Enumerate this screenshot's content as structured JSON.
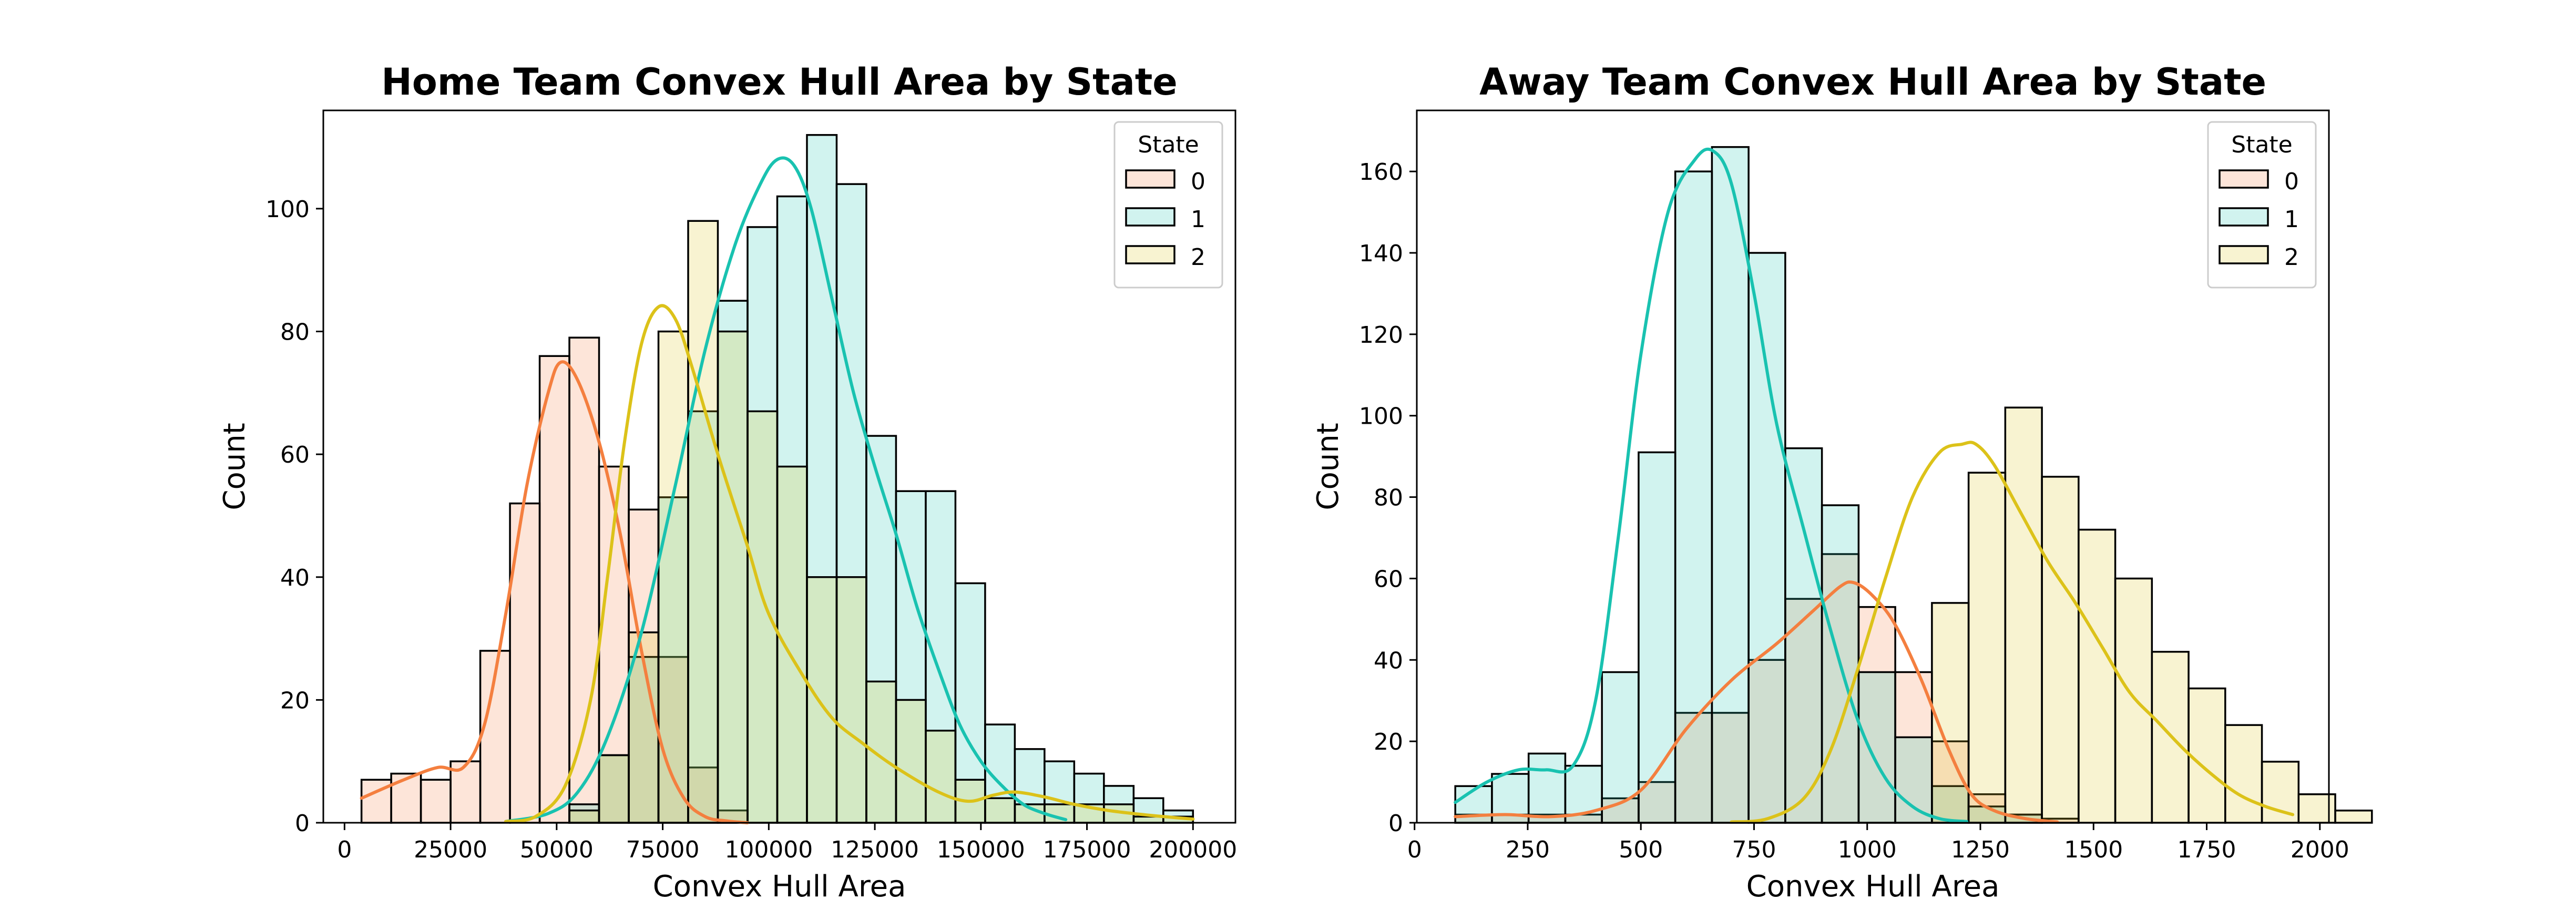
{
  "chart_data": [
    {
      "type": "histogram",
      "title": "Home Team Convex Hull Area by State",
      "xlabel": "Convex Hull Area",
      "ylabel": "Count",
      "xlim": [
        -5000,
        210000
      ],
      "ylim": [
        0,
        116
      ],
      "xticks": [
        0,
        25000,
        50000,
        75000,
        100000,
        125000,
        150000,
        175000,
        200000
      ],
      "xtick_labels": [
        "0",
        "25000",
        "50000",
        "75000",
        "100000",
        "125000",
        "150000",
        "175000",
        "200000"
      ],
      "yticks": [
        0,
        20,
        40,
        60,
        80,
        100
      ],
      "ytick_labels": [
        "0",
        "20",
        "40",
        "60",
        "80",
        "100"
      ],
      "legend": {
        "title": "State",
        "position": "top-right",
        "entries": [
          "0",
          "1",
          "2"
        ]
      },
      "bin_start": 4000,
      "bin_width": 7000,
      "series": [
        {
          "name": "0",
          "color": "#f47f3f",
          "counts": [
            7,
            8,
            7,
            10,
            28,
            52,
            76,
            79,
            58,
            51,
            27,
            9,
            2,
            0,
            0,
            0,
            0,
            0,
            0,
            0,
            0,
            0,
            0,
            0,
            0,
            0,
            0,
            0
          ],
          "kde_x": [
            4000,
            14000,
            22000,
            28000,
            33000,
            38000,
            43000,
            48000,
            51000,
            55000,
            60000,
            65000,
            70000,
            75000,
            80000,
            85000,
            90000,
            95000
          ],
          "kde_y": [
            4,
            7,
            9,
            9,
            16,
            34,
            55,
            70,
            75,
            72,
            62,
            47,
            28,
            12,
            4,
            1,
            0.3,
            0
          ]
        },
        {
          "name": "1",
          "color": "#19c2b0",
          "counts": [
            0,
            0,
            0,
            0,
            0,
            0,
            0,
            3,
            11,
            27,
            53,
            67,
            85,
            97,
            102,
            112,
            104,
            63,
            54,
            54,
            39,
            16,
            12,
            10,
            8,
            6,
            4,
            2
          ],
          "kde_x": [
            38000,
            48000,
            55000,
            62000,
            70000,
            78000,
            85000,
            92000,
            98000,
            102000,
            106000,
            110000,
            115000,
            120000,
            125000,
            130000,
            135000,
            140000,
            145000,
            150000,
            155000,
            160000,
            165000,
            170000
          ],
          "kde_y": [
            0.2,
            1.5,
            5,
            14,
            31,
            55,
            77,
            94,
            104,
            108,
            107,
            100,
            85,
            70,
            58,
            47,
            35,
            25,
            16,
            10,
            6,
            3,
            1.5,
            0.5
          ]
        },
        {
          "name": "2",
          "color": "#dcc219",
          "counts": [
            0,
            0,
            0,
            0,
            0,
            0,
            0,
            2,
            11,
            31,
            80,
            98,
            80,
            67,
            58,
            40,
            40,
            23,
            20,
            15,
            7,
            4,
            3,
            3,
            3,
            3,
            1,
            1
          ],
          "kde_x": [
            38000,
            45000,
            52000,
            58000,
            62000,
            66000,
            70000,
            74000,
            78000,
            82000,
            88000,
            95000,
            100000,
            108000,
            115000,
            122000,
            130000,
            140000,
            147000,
            153000,
            158000,
            165000,
            172000,
            180000,
            190000,
            200000
          ],
          "kde_y": [
            0.2,
            1,
            6,
            20,
            40,
            62,
            78,
            84,
            82,
            74,
            60,
            45,
            34,
            24,
            17,
            13,
            9,
            5,
            3.5,
            4.5,
            5,
            4.2,
            3,
            2,
            1.2,
            0.6
          ]
        }
      ]
    },
    {
      "type": "histogram",
      "title": "Away Team Convex Hull Area by State",
      "xlabel": "Convex Hull Area",
      "ylabel": "Count",
      "xlim": [
        5,
        2020
      ],
      "ylim": [
        0,
        175
      ],
      "xticks": [
        0,
        250,
        500,
        750,
        1000,
        1250,
        1500,
        1750,
        2000
      ],
      "xtick_labels": [
        "0",
        "250",
        "500",
        "750",
        "1000",
        "1250",
        "1500",
        "1750",
        "2000"
      ],
      "yticks": [
        0,
        20,
        40,
        60,
        80,
        100,
        120,
        140,
        160
      ],
      "ytick_labels": [
        "0",
        "20",
        "40",
        "60",
        "80",
        "100",
        "120",
        "140",
        "160"
      ],
      "legend": {
        "title": "State",
        "position": "top-right",
        "entries": [
          "0",
          "1",
          "2"
        ]
      },
      "bin_start": 90,
      "bin_width": 81,
      "series": [
        {
          "name": "0",
          "color": "#f47f3f",
          "counts": [
            2,
            2,
            2,
            2,
            6,
            10,
            27,
            27,
            40,
            55,
            66,
            53,
            37,
            20,
            7,
            2,
            1,
            0,
            0,
            0,
            0,
            0,
            0
          ],
          "kde_x": [
            90,
            200,
            300,
            400,
            500,
            600,
            700,
            800,
            880,
            940,
            970,
            1010,
            1060,
            1120,
            1180,
            1230,
            1280,
            1350,
            1420
          ],
          "kde_y": [
            1.5,
            2,
            1.5,
            3,
            8,
            23,
            35,
            44,
            52,
            58,
            59,
            56,
            49,
            35,
            18,
            7,
            3,
            1,
            0.2
          ]
        },
        {
          "name": "1",
          "color": "#19c2b0",
          "counts": [
            9,
            12,
            17,
            14,
            37,
            91,
            160,
            166,
            140,
            92,
            78,
            37,
            21,
            9,
            4,
            2,
            0,
            0,
            0,
            0,
            0,
            0,
            0
          ],
          "kde_x": [
            90,
            160,
            230,
            290,
            350,
            400,
            450,
            500,
            560,
            620,
            660,
            700,
            750,
            800,
            860,
            920,
            980,
            1040,
            1100,
            1160,
            1220
          ],
          "kde_y": [
            5,
            10,
            13,
            13,
            14,
            30,
            70,
            115,
            150,
            163,
            165,
            157,
            130,
            98,
            72,
            47,
            25,
            11,
            4,
            1,
            0.3
          ]
        },
        {
          "name": "2",
          "color": "#dcc219",
          "counts": [
            0,
            0,
            0,
            0,
            0,
            0,
            0,
            0,
            0,
            0,
            0,
            0,
            0,
            54,
            86,
            102,
            85,
            72,
            60,
            42,
            33,
            24,
            15,
            7,
            3
          ],
          "kde_x": [
            700,
            780,
            860,
            920,
            980,
            1040,
            1100,
            1160,
            1210,
            1240,
            1280,
            1340,
            1400,
            1460,
            1520,
            1580,
            1640,
            1700,
            1760,
            1820,
            1880,
            1940
          ],
          "kde_y": [
            0.2,
            1,
            6,
            18,
            38,
            60,
            80,
            91,
            93,
            93,
            88,
            76,
            64,
            54,
            43,
            32,
            25,
            18,
            12,
            7,
            4,
            2
          ]
        }
      ]
    }
  ]
}
